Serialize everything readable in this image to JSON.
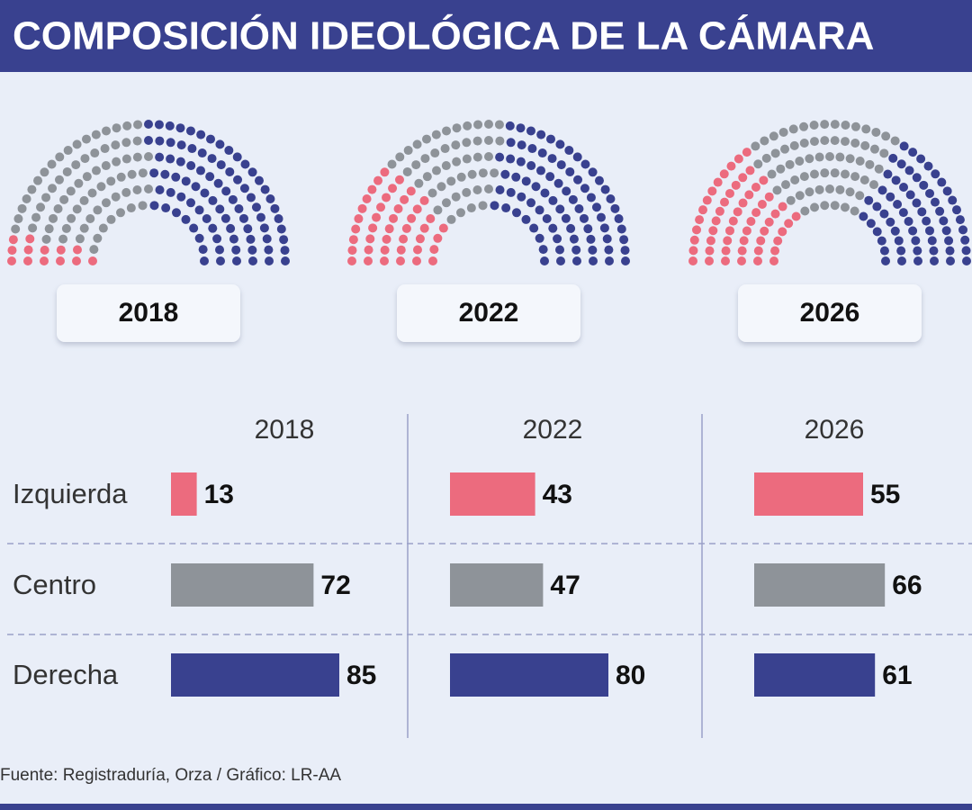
{
  "chart_data": {
    "type": "parliament",
    "title": "COMPOSICIÓN IDEOLÓGICA DE LA CÁMARA",
    "categories": [
      "Izquierda",
      "Centro",
      "Derecha"
    ],
    "colors": [
      "#ec6b7e",
      "#8e9399",
      "#39418f"
    ],
    "series": [
      {
        "name": "2018",
        "values": [
          13,
          72,
          85
        ]
      },
      {
        "name": "2022",
        "values": [
          43,
          47,
          80
        ]
      },
      {
        "name": "2026",
        "values": [
          55,
          66,
          61
        ]
      }
    ],
    "source": "Fuente: Registraduría, Orza / Gráfico: LR-AA"
  }
}
